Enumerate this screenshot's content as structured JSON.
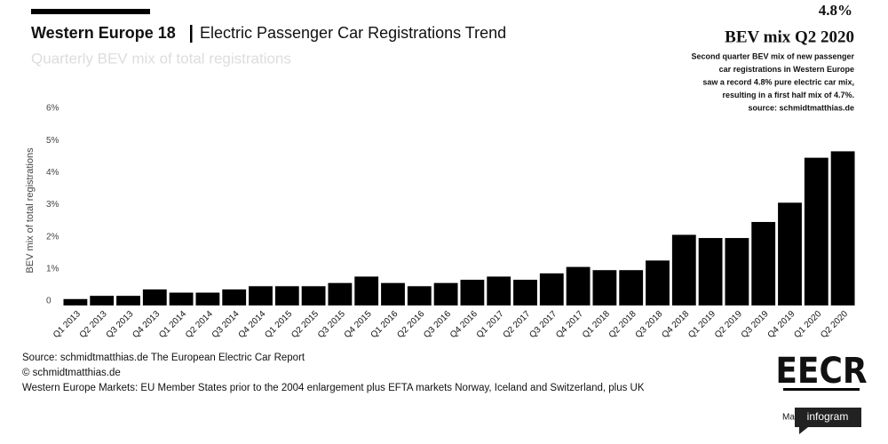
{
  "chart_data": {
    "type": "bar",
    "title_prefix": "Western Europe 18",
    "title": "Electric Passenger Car Registrations Trend",
    "subtitle": "Quarterly BEV mix of total registrations",
    "y_label": "BEV mix of total registrations",
    "annotation_value": "4.8%",
    "annotation_title": "BEV mix Q2 2020",
    "annotation_lines": [
      "Second quarter BEV mix of new passenger",
      "car registrations in Western Europe",
      "saw a record 4.8% pure electric car mix,",
      "resulting in a first half mix of 4.7%.",
      "source: schmidtmatthias.de"
    ],
    "footer": [
      "Source: schmidtmatthias.de The European Electric Car Report",
      "© schmidtmatthias.de",
      "Western Europe Markets: EU Member States prior to the 2004 enlargement plus EFTA markets Norway, Iceland and Switzerland, plus UK"
    ],
    "logo": "EECR",
    "made_with": "Made with",
    "brand": "infogram",
    "categories": [
      "Q1 2013",
      "Q2 2013",
      "Q3 2013",
      "Q4 2013",
      "Q1 2014",
      "Q2 2014",
      "Q3 2014",
      "Q4 2014",
      "Q1 2015",
      "Q2 2015",
      "Q3 2015",
      "Q4 2015",
      "Q1 2016",
      "Q2 2016",
      "Q3 2016",
      "Q4 2016",
      "Q1 2017",
      "Q2 2017",
      "Q3 2017",
      "Q4 2017",
      "Q1 2018",
      "Q2 2018",
      "Q3 2018",
      "Q4 2018",
      "Q1 2019",
      "Q2 2019",
      "Q3 2019",
      "Q4 2019",
      "Q1 2020",
      "Q2 2020"
    ],
    "values": [
      0.2,
      0.3,
      0.3,
      0.5,
      0.4,
      0.4,
      0.5,
      0.6,
      0.6,
      0.6,
      0.7,
      0.9,
      0.7,
      0.6,
      0.7,
      0.8,
      0.9,
      0.8,
      1.0,
      1.2,
      1.1,
      1.1,
      1.4,
      2.2,
      2.1,
      2.1,
      2.6,
      3.2,
      4.6,
      4.8
    ],
    "color": "#000000",
    "ylim": [
      0,
      6
    ],
    "yticks": [
      0,
      {
        "value": 1,
        "label": "1%"
      },
      {
        "value": 2,
        "label": "2%"
      },
      {
        "value": 3,
        "label": "3%"
      },
      {
        "value": 4,
        "label": "4%"
      },
      {
        "value": 5,
        "label": "5%"
      },
      {
        "value": 6,
        "label": "6%"
      }
    ],
    "grid": false
  }
}
